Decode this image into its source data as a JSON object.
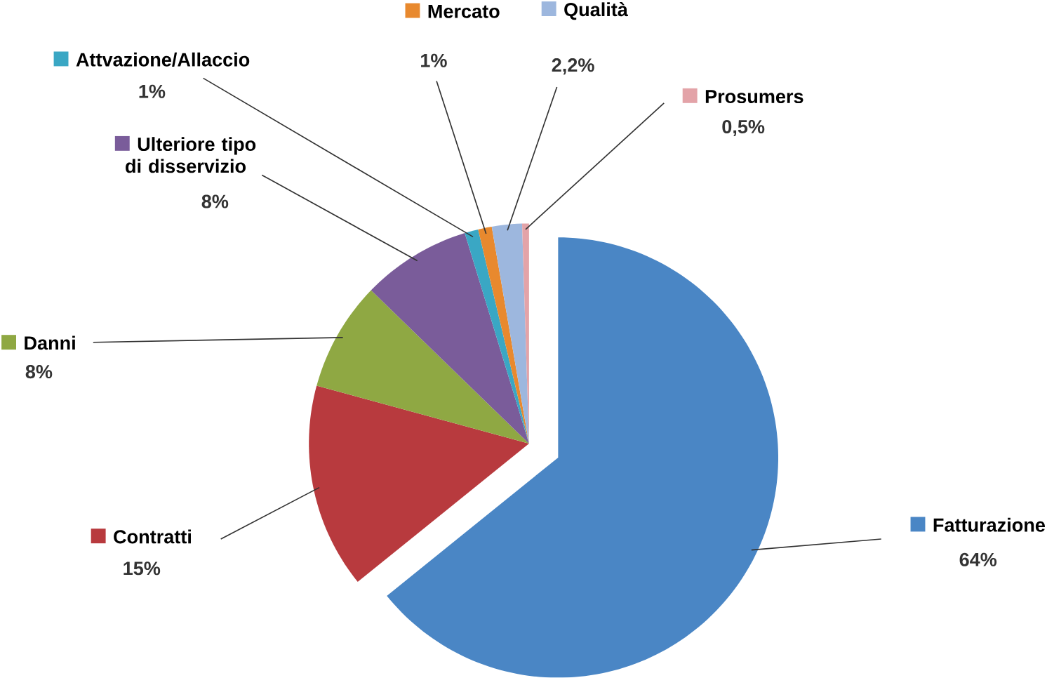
{
  "chart_data": {
    "type": "pie",
    "categories": [
      "Fatturazione",
      "Contratti",
      "Danni",
      "Ulteriore tipo di disservizio",
      "Attvazione/Allaccio",
      "Mercato",
      "Qualità",
      "Prosumers"
    ],
    "values": [
      64,
      15,
      8,
      8,
      1,
      1,
      2.2,
      0.5
    ],
    "colors": [
      "#4a86c5",
      "#b83a3e",
      "#8fa843",
      "#7a5c9a",
      "#3aa7c4",
      "#e8892e",
      "#9db7de",
      "#e3a3a8"
    ],
    "value_labels": [
      "64%",
      "15%",
      "8%",
      "8%",
      "1%",
      "1%",
      "2,2%",
      "0,5%"
    ],
    "legend": "top"
  }
}
